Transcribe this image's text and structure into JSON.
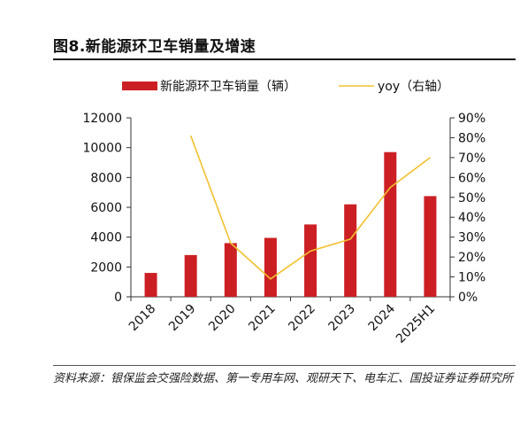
{
  "figure": {
    "title": "图8.新能源环卫车销量及增速",
    "source": "资料来源：银保监会交强险数据、第一专用车网、观研天下、电车汇、国投证券证券研究所"
  },
  "colors": {
    "bar": "#cc1f24",
    "line": "#f2c02f",
    "axis": "#333333"
  },
  "chart_data": {
    "type": "bar",
    "categories": [
      "2018",
      "2019",
      "2020",
      "2021",
      "2022",
      "2023",
      "2024",
      "2025H1"
    ],
    "series": [
      {
        "name": "新能源环卫车销量（辆）",
        "type": "bar",
        "axis": "left",
        "values": [
          1600,
          2800,
          3600,
          3950,
          4850,
          6200,
          9700,
          6750
        ]
      },
      {
        "name": "yoy（右轴）",
        "type": "line",
        "axis": "right",
        "values": [
          null,
          81,
          27,
          9,
          23,
          29,
          55,
          70
        ]
      }
    ],
    "ylim": [
      0,
      12000
    ],
    "yticks": [
      0,
      2000,
      4000,
      6000,
      8000,
      10000,
      12000
    ],
    "y2lim": [
      0,
      90
    ],
    "y2ticks": [
      "0%",
      "10%",
      "20%",
      "30%",
      "40%",
      "50%",
      "60%",
      "70%",
      "80%",
      "90%"
    ],
    "legend_position": "top",
    "grid": false
  }
}
